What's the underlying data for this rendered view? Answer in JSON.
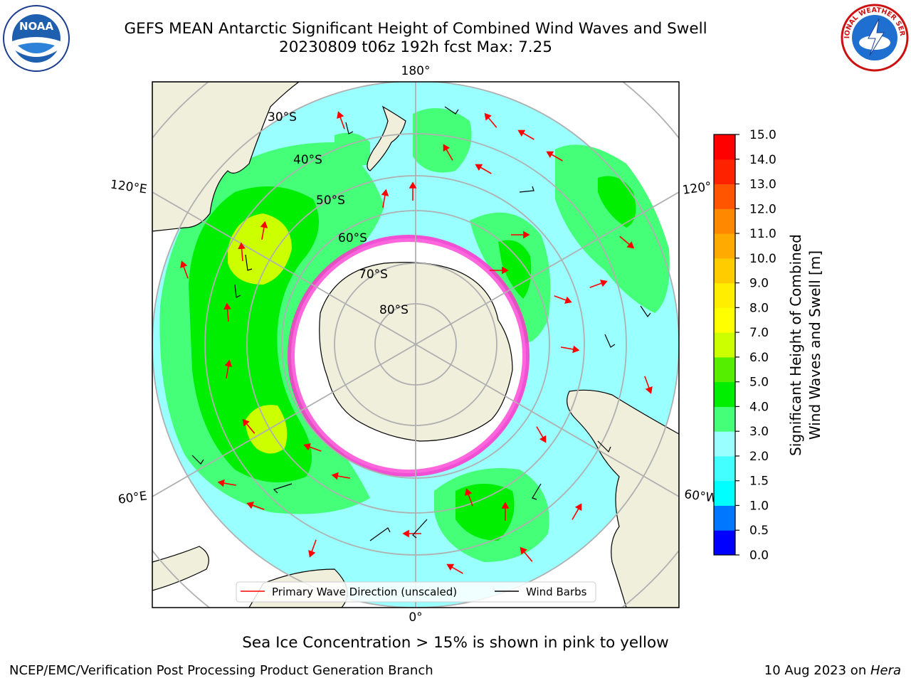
{
  "header": {
    "title_line1": "GEFS MEAN Antarctic Significant Height of Combined Wind Waves and Swell",
    "title_line2": "20230809 t06z 192h fcst   Max: 7.25"
  },
  "logos": {
    "left_text": "NOAA",
    "right_text": "NATIONAL WEATHER SERVICE"
  },
  "map": {
    "lon_labels": {
      "top": "180°",
      "left_upper": "120°E",
      "right_upper": "120°",
      "left_lower": "60°E",
      "right_lower": "60°W",
      "bottom": "0°"
    },
    "lat_labels": [
      "30°S",
      "40°S",
      "50°S",
      "60°S",
      "70°S",
      "80°S"
    ],
    "legend": {
      "primary_wave": "Primary Wave Direction (unscaled)",
      "wind_barbs": "Wind Barbs"
    }
  },
  "colorbar": {
    "label_line1": "Significant Height of Combined",
    "label_line2": "Wind Waves and Swell [m]",
    "ticks": [
      "0.0",
      "0.5",
      "1.0",
      "1.5",
      "2.0",
      "3.0",
      "4.0",
      "5.0",
      "6.0",
      "7.0",
      "8.0",
      "9.0",
      "10.0",
      "11.0",
      "12.0",
      "13.0",
      "14.0",
      "15.0"
    ],
    "colors": [
      "#0000ff",
      "#0077ff",
      "#00ffff",
      "#44ffff",
      "#99ffff",
      "#44ff77",
      "#00ee00",
      "#55ee00",
      "#ccff00",
      "#ffff00",
      "#ffee00",
      "#ffcc00",
      "#ffaa00",
      "#ff8800",
      "#ff5500",
      "#ff2200",
      "#ff0000"
    ]
  },
  "colors": {
    "land": "#efefdc",
    "sea_ice": "#ff33cc",
    "wave_arrow": "#ff0000"
  },
  "caption": "Sea Ice Concentration > 15% is shown in pink to yellow",
  "footer": {
    "left": "NCEP/EMC/Verification Post Processing Product Generation Branch",
    "right_date": "10 Aug 2023 on ",
    "right_machine": "Hera"
  }
}
